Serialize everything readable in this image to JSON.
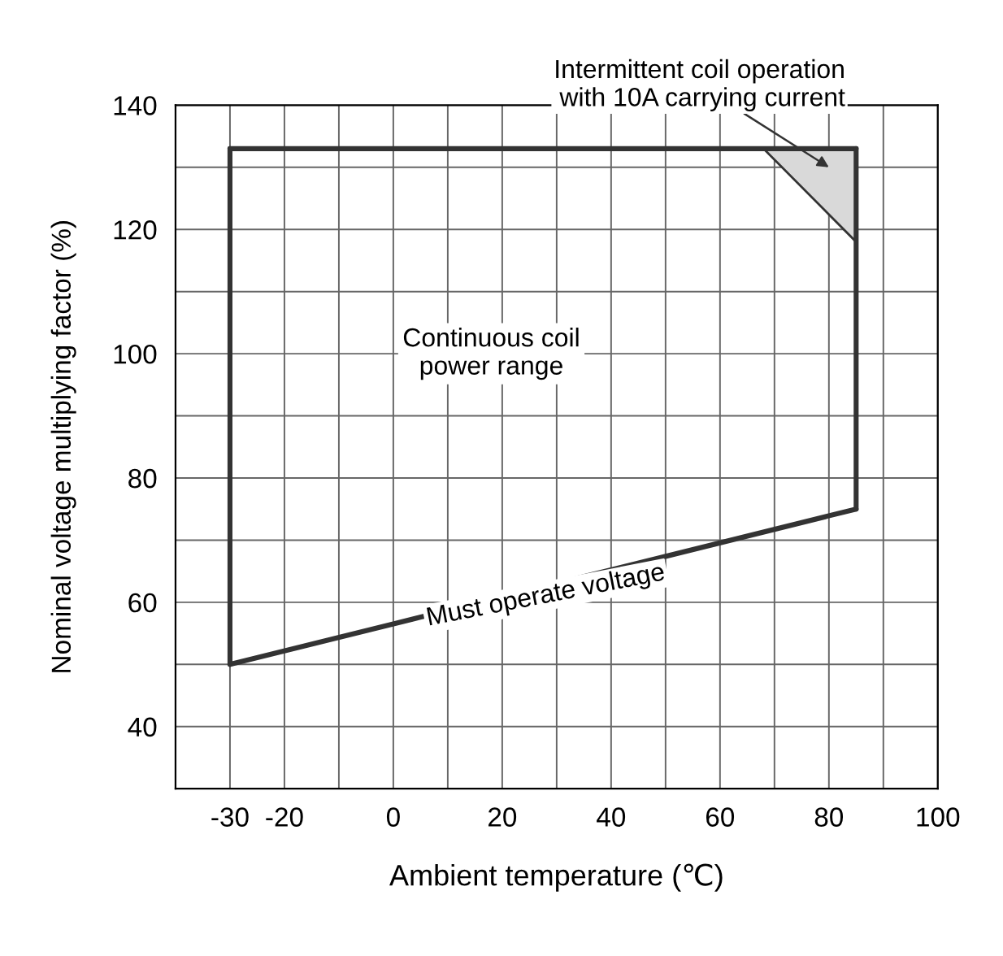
{
  "chart_data": {
    "type": "line",
    "xlabel": "Ambient temperature (℃)",
    "ylabel": "Nominal voltage multiplying factor (%)",
    "xlim": [
      -40,
      100
    ],
    "ylim": [
      30,
      140
    ],
    "xticks": [
      -30,
      -20,
      {
        "value": -10,
        "label": null
      },
      0,
      {
        "value": 10,
        "label": null
      },
      20,
      {
        "value": 30,
        "label": null
      },
      40,
      {
        "value": 50,
        "label": null
      },
      60,
      {
        "value": 70,
        "label": null
      },
      80,
      {
        "value": 90,
        "label": null
      },
      100
    ],
    "yticks": [
      {
        "value": 30,
        "label": null
      },
      40,
      {
        "value": 50,
        "label": null
      },
      60,
      {
        "value": 70,
        "label": null
      },
      80,
      {
        "value": 90,
        "label": null
      },
      100,
      {
        "value": 110,
        "label": null
      },
      120,
      {
        "value": 130,
        "label": null
      },
      140
    ],
    "grid": true,
    "series": [
      {
        "type": "area",
        "color": "#d9d9d9",
        "x": [
          68,
          85,
          85
        ],
        "values": [
          133,
          133,
          118
        ]
      },
      {
        "color": "#333333",
        "x": [
          -30,
          85
        ],
        "values": [
          50,
          75
        ]
      },
      {
        "color": "#333333",
        "x": [
          -30,
          85
        ],
        "values": [
          133,
          133
        ]
      },
      {
        "color": "#333333",
        "x": [
          -30,
          -30
        ],
        "values": [
          50,
          133
        ]
      },
      {
        "color": "#333333",
        "x": [
          85,
          85
        ],
        "values": [
          75,
          133
        ]
      }
    ],
    "annotations": [
      "Intermittent coil operation\nwith 10A carrying current",
      "Continuous coil\npower range",
      "Must operate voltage"
    ]
  }
}
